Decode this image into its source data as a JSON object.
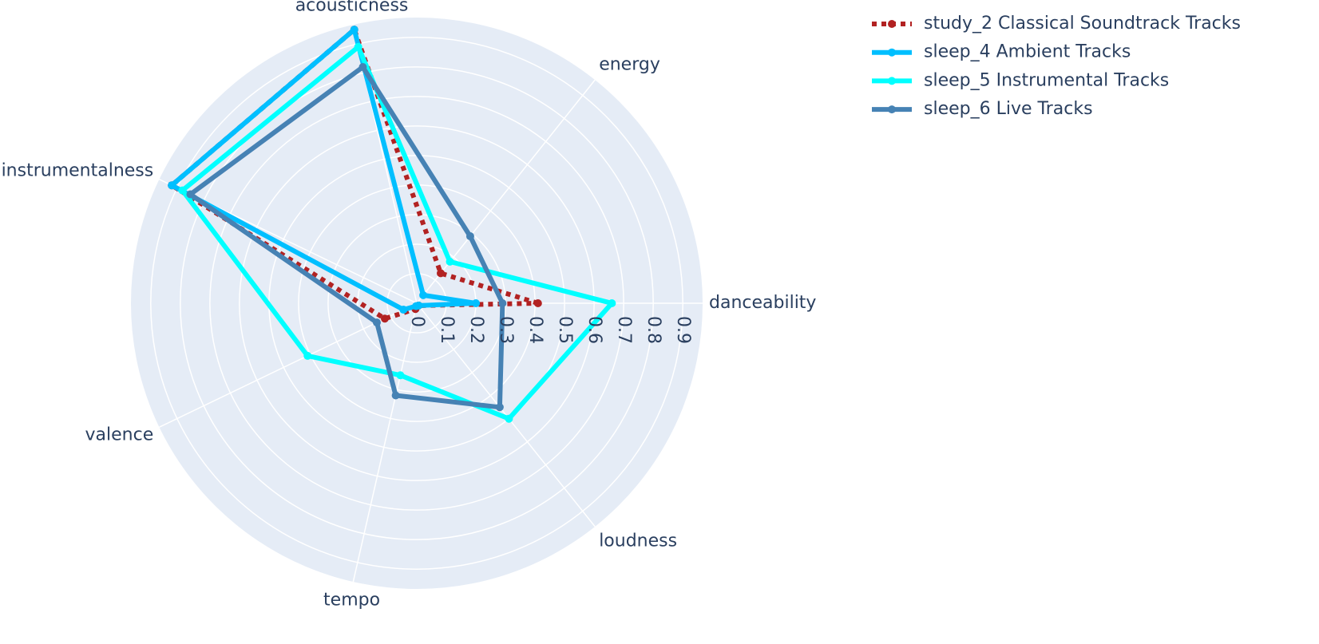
{
  "chart_data": {
    "type": "radar",
    "categories": [
      "danceability",
      "energy",
      "acousticness",
      "instrumentalness",
      "valence",
      "tempo",
      "loudness"
    ],
    "rlim": [
      0,
      0.967
    ],
    "rticks": [
      0,
      0.1,
      0.2,
      0.3,
      0.4,
      0.5,
      0.6,
      0.7,
      0.8,
      0.9
    ],
    "grid": true,
    "legend": "top-right",
    "series": [
      {
        "name": "study_2 Classical Soundtrack Tracks",
        "color": "#b22222",
        "dash": "dot",
        "values": [
          0.41,
          0.13,
          0.95,
          0.92,
          0.12,
          0.02,
          0.01
        ]
      },
      {
        "name": "sleep_4 Ambient Tracks",
        "color": "#00bfff",
        "dash": "solid",
        "values": [
          0.2,
          0.035,
          0.95,
          0.92,
          0.05,
          0.01,
          0.01
        ]
      },
      {
        "name": "sleep_5 Instrumental Tracks",
        "color": "#00ffff",
        "dash": "solid",
        "values": [
          0.66,
          0.18,
          0.89,
          0.88,
          0.41,
          0.25,
          0.5
        ]
      },
      {
        "name": "sleep_6 Live Tracks",
        "color": "#4682b4",
        "dash": "solid",
        "values": [
          0.29,
          0.29,
          0.82,
          0.85,
          0.15,
          0.32,
          0.45
        ]
      }
    ]
  }
}
